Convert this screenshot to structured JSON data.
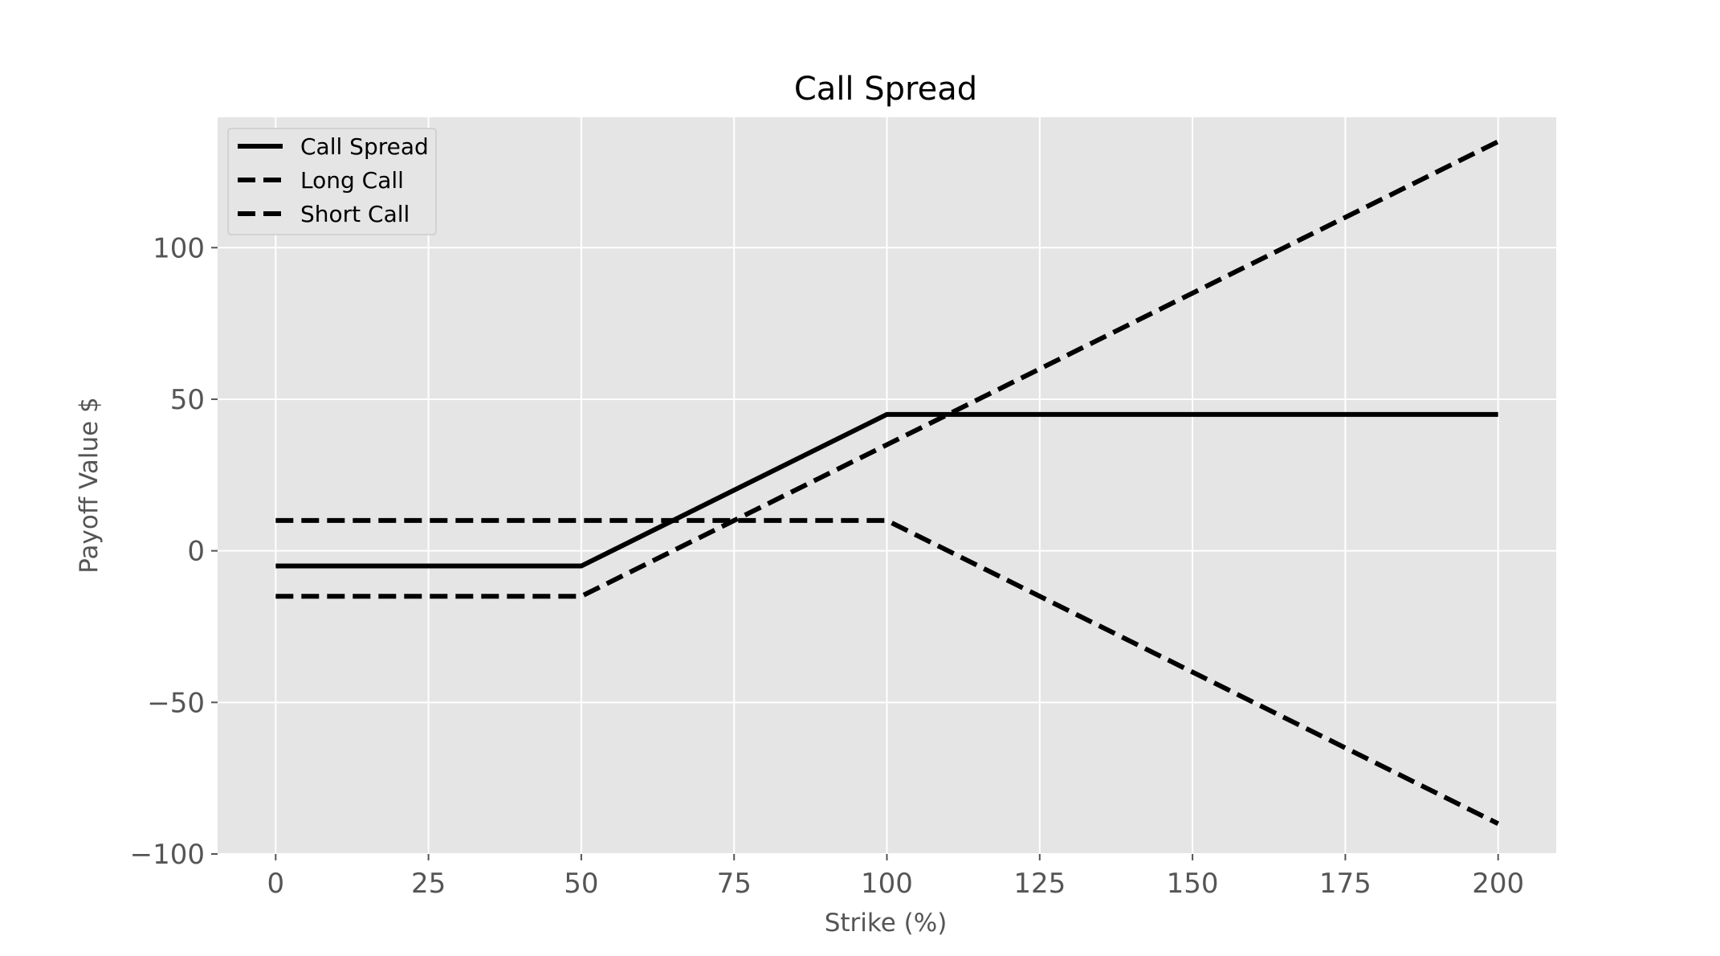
{
  "chart_data": {
    "type": "line",
    "title": "Call Spread",
    "xlabel": "Strike (%)",
    "ylabel": "Payoff Value $",
    "xlim": [
      -9.5,
      209.5
    ],
    "ylim": [
      -100,
      143
    ],
    "xticks": [
      0,
      25,
      50,
      75,
      100,
      125,
      150,
      175,
      200
    ],
    "xtick_labels": [
      "0",
      "25",
      "50",
      "75",
      "100",
      "125",
      "150",
      "175",
      "200"
    ],
    "yticks": [
      -100,
      -50,
      0,
      50,
      100
    ],
    "ytick_labels": [
      "−100",
      "−50",
      "0",
      "50",
      "100"
    ],
    "grid": true,
    "legend_position": "top-left",
    "background": "#e5e5e5",
    "series": [
      {
        "name": "Call Spread",
        "style": "solid",
        "color": "#000000",
        "x": [
          0,
          50,
          100,
          200
        ],
        "y": [
          -5,
          -5,
          45,
          45
        ]
      },
      {
        "name": "Long Call",
        "style": "dashed",
        "color": "#000000",
        "x": [
          0,
          50,
          200
        ],
        "y": [
          -15,
          -15,
          135
        ]
      },
      {
        "name": "Short Call",
        "style": "dashed",
        "color": "#000000",
        "x": [
          0,
          100,
          200
        ],
        "y": [
          10,
          10,
          -90
        ]
      }
    ]
  }
}
